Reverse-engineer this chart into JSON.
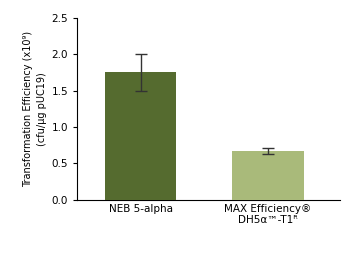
{
  "categories": [
    "NEB 5-alpha",
    "MAX Efficiency®\nDH5α™-T1ᴿ"
  ],
  "values": [
    1.75,
    0.67
  ],
  "errors": [
    0.25,
    0.04
  ],
  "bar_colors": [
    "#556B2F",
    "#A9BA7A"
  ],
  "error_color": "#333333",
  "ylabel_line1": "Transformation Efficiency (x10⁹)",
  "ylabel_line2": "(cfu/µg pUC19)",
  "ylim": [
    0,
    2.5
  ],
  "yticks": [
    0,
    0.5,
    1.0,
    1.5,
    2.0,
    2.5
  ],
  "background_color": "#ffffff",
  "bar_width": 0.45,
  "capsize": 4,
  "bar_positions": [
    0.3,
    1.1
  ]
}
